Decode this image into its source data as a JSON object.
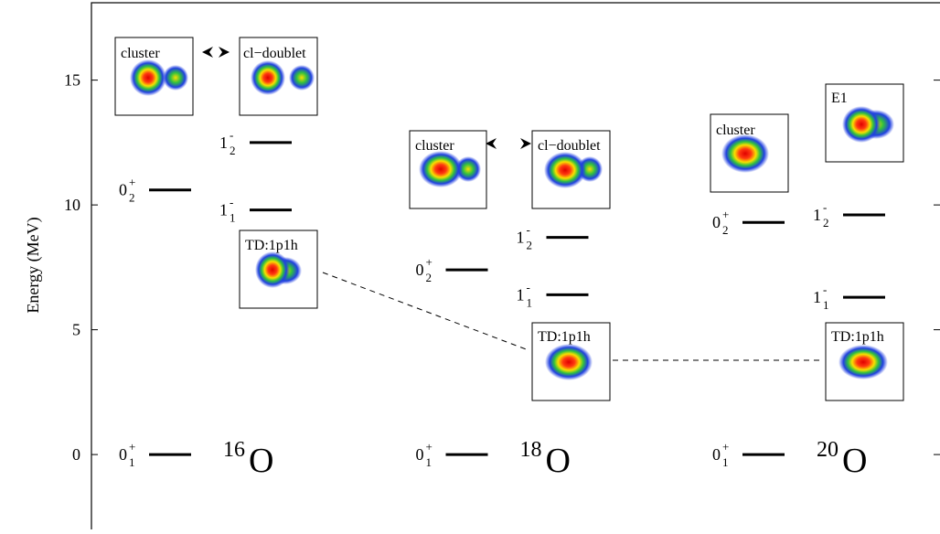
{
  "chart_data": {
    "type": "level",
    "ylabel": "Energy (MeV)",
    "ylim": [
      -3,
      18.1
    ],
    "yticks": [
      0,
      5,
      10,
      15
    ],
    "nuclei": [
      {
        "mass": "16",
        "symbol": "O",
        "levels": [
          {
            "spin": "0",
            "parity": "+",
            "index": "1",
            "energy": 0
          },
          {
            "spin": "0",
            "parity": "+",
            "index": "2",
            "energy": 10.6
          },
          {
            "spin": "1",
            "parity": "-",
            "index": "1",
            "energy": 9.8
          },
          {
            "spin": "1",
            "parity": "-",
            "index": "2",
            "energy": 12.5
          }
        ]
      },
      {
        "mass": "18",
        "symbol": "O",
        "levels": [
          {
            "spin": "0",
            "parity": "+",
            "index": "1",
            "energy": 0
          },
          {
            "spin": "0",
            "parity": "+",
            "index": "2",
            "energy": 7.4
          },
          {
            "spin": "1",
            "parity": "-",
            "index": "1",
            "energy": 6.4
          },
          {
            "spin": "1",
            "parity": "-",
            "index": "2",
            "energy": 8.7
          }
        ]
      },
      {
        "mass": "20",
        "symbol": "O",
        "levels": [
          {
            "spin": "0",
            "parity": "+",
            "index": "1",
            "energy": 0
          },
          {
            "spin": "0",
            "parity": "+",
            "index": "2",
            "energy": 9.3
          },
          {
            "spin": "1",
            "parity": "-",
            "index": "1",
            "energy": 6.3
          },
          {
            "spin": "1",
            "parity": "-",
            "index": "2",
            "energy": 9.6
          }
        ]
      }
    ]
  },
  "density_panels": [
    "cluster",
    "cl−doublet",
    "TD:1p1h",
    "cluster",
    "cl−doublet",
    "TD:1p1h",
    "cluster",
    "E1",
    "TD:1p1h"
  ]
}
